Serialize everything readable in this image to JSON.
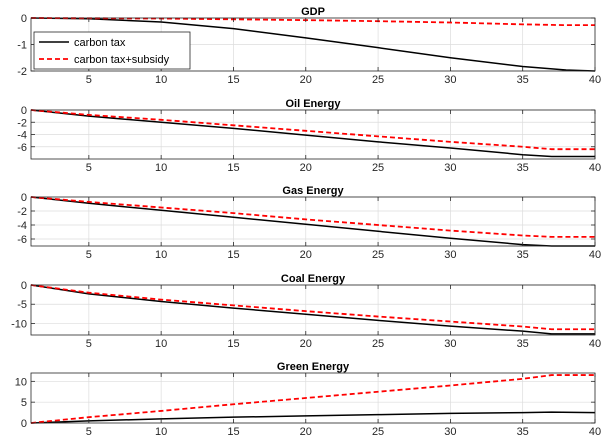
{
  "chart_data": [
    {
      "type": "line",
      "title": "GDP",
      "xlim": [
        1,
        40
      ],
      "ylim": [
        -2,
        0
      ],
      "xticks": [
        5,
        10,
        15,
        20,
        25,
        30,
        35,
        40
      ],
      "yticks": [
        0,
        -1,
        -2
      ],
      "grid": true,
      "legend": "top-left",
      "series": [
        {
          "name": "carbon tax",
          "color": "#000000",
          "style": "solid",
          "x": [
            1,
            5,
            10,
            15,
            20,
            25,
            30,
            35,
            38,
            40
          ],
          "y": [
            0,
            -0.03,
            -0.15,
            -0.4,
            -0.75,
            -1.12,
            -1.5,
            -1.83,
            -1.96,
            -2.0
          ]
        },
        {
          "name": "carbon tax+subsidy",
          "color": "#ff0000",
          "style": "dashed",
          "x": [
            1,
            5,
            10,
            15,
            20,
            25,
            30,
            35,
            38,
            40
          ],
          "y": [
            0,
            -0.01,
            -0.02,
            -0.05,
            -0.08,
            -0.12,
            -0.17,
            -0.24,
            -0.27,
            -0.27
          ]
        }
      ]
    },
    {
      "type": "line",
      "title": "Oil Energy",
      "xlim": [
        1,
        40
      ],
      "ylim": [
        -8,
        0
      ],
      "xticks": [
        5,
        10,
        15,
        20,
        25,
        30,
        35,
        40
      ],
      "yticks": [
        0,
        -2,
        -4,
        -6
      ],
      "grid": true,
      "series": [
        {
          "name": "carbon tax",
          "color": "#000000",
          "style": "solid",
          "x": [
            1,
            5,
            10,
            15,
            20,
            25,
            30,
            35,
            37,
            40
          ],
          "y": [
            0,
            -1.0,
            -2.0,
            -3.0,
            -4.1,
            -5.2,
            -6.2,
            -7.3,
            -7.6,
            -7.6
          ]
        },
        {
          "name": "carbon tax+subsidy",
          "color": "#ff0000",
          "style": "dashed",
          "x": [
            1,
            5,
            10,
            15,
            20,
            25,
            30,
            35,
            37,
            40
          ],
          "y": [
            0,
            -0.8,
            -1.6,
            -2.5,
            -3.4,
            -4.3,
            -5.2,
            -6.0,
            -6.4,
            -6.4
          ]
        }
      ]
    },
    {
      "type": "line",
      "title": "Gas Energy",
      "xlim": [
        1,
        40
      ],
      "ylim": [
        -7,
        0
      ],
      "xticks": [
        5,
        10,
        15,
        20,
        25,
        30,
        35,
        40
      ],
      "yticks": [
        0,
        -2,
        -4,
        -6
      ],
      "grid": true,
      "series": [
        {
          "name": "carbon tax",
          "color": "#000000",
          "style": "solid",
          "x": [
            1,
            5,
            10,
            15,
            20,
            25,
            30,
            35,
            37,
            40
          ],
          "y": [
            0,
            -0.9,
            -1.9,
            -2.9,
            -3.9,
            -4.9,
            -5.9,
            -6.8,
            -7.0,
            -7.0
          ]
        },
        {
          "name": "carbon tax+subsidy",
          "color": "#ff0000",
          "style": "dashed",
          "x": [
            1,
            5,
            10,
            15,
            20,
            25,
            30,
            35,
            37,
            40
          ],
          "y": [
            0,
            -0.7,
            -1.5,
            -2.3,
            -3.2,
            -4.0,
            -4.8,
            -5.5,
            -5.7,
            -5.7
          ]
        }
      ]
    },
    {
      "type": "line",
      "title": "Coal Energy",
      "xlim": [
        1,
        40
      ],
      "ylim": [
        -13,
        0
      ],
      "xticks": [
        5,
        10,
        15,
        20,
        25,
        30,
        35,
        40
      ],
      "yticks": [
        0,
        -5,
        -10
      ],
      "grid": true,
      "series": [
        {
          "name": "carbon tax",
          "color": "#000000",
          "style": "solid",
          "x": [
            1,
            5,
            10,
            15,
            20,
            25,
            30,
            35,
            37,
            40
          ],
          "y": [
            0,
            -2.3,
            -4.3,
            -6.0,
            -7.6,
            -9.2,
            -10.7,
            -12.0,
            -12.7,
            -12.7
          ]
        },
        {
          "name": "carbon tax+subsidy",
          "color": "#ff0000",
          "style": "dashed",
          "x": [
            1,
            5,
            10,
            15,
            20,
            25,
            30,
            35,
            37,
            40
          ],
          "y": [
            0,
            -2.0,
            -3.8,
            -5.3,
            -6.8,
            -8.2,
            -9.5,
            -10.8,
            -11.5,
            -11.5
          ]
        }
      ]
    },
    {
      "type": "line",
      "title": "Green Energy",
      "xlim": [
        1,
        40
      ],
      "ylim": [
        0,
        12
      ],
      "xticks": [
        5,
        10,
        15,
        20,
        25,
        30,
        35,
        40
      ],
      "yticks": [
        0,
        5,
        10
      ],
      "grid": true,
      "series": [
        {
          "name": "carbon tax",
          "color": "#000000",
          "style": "solid",
          "x": [
            1,
            5,
            10,
            15,
            20,
            25,
            30,
            35,
            37,
            40
          ],
          "y": [
            0,
            0.5,
            1.0,
            1.4,
            1.7,
            2.0,
            2.3,
            2.5,
            2.6,
            2.5
          ]
        },
        {
          "name": "carbon tax+subsidy",
          "color": "#ff0000",
          "style": "dashed",
          "x": [
            1,
            5,
            10,
            15,
            20,
            25,
            30,
            35,
            37,
            40
          ],
          "y": [
            0,
            1.4,
            2.9,
            4.5,
            6.0,
            7.5,
            9.0,
            10.6,
            11.5,
            11.5
          ]
        }
      ]
    }
  ]
}
